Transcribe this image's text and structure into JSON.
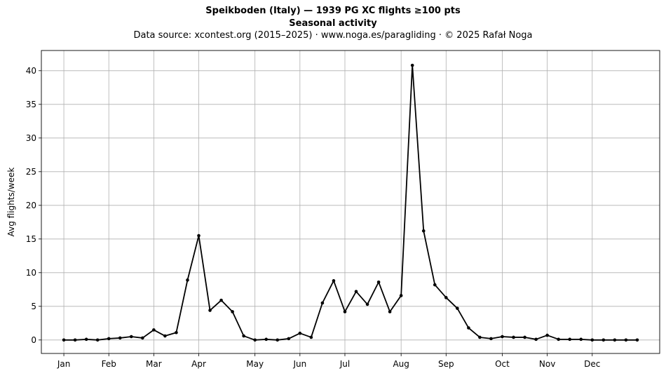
{
  "header": {
    "title_line1": "Speikboden (Italy)  —  1939 PG XC flights ≥100 pts",
    "title_line2": "Seasonal activity",
    "title_line3": "Data source: xcontest.org (2015–2025)  ·  www.noga.es/paragliding  ·  © 2025 Rafał Noga"
  },
  "chart_data": {
    "type": "line",
    "title": "Speikboden (Italy)  —  1939 PG XC flights ≥100 pts",
    "subtitle": "Seasonal activity",
    "ylabel": "Avg flights/week",
    "xlabel": "",
    "ylim": [
      -2,
      43
    ],
    "yticks": [
      0,
      5,
      10,
      15,
      20,
      25,
      30,
      35,
      40
    ],
    "xticks": [
      {
        "label": "Jan",
        "week": 0
      },
      {
        "label": "Feb",
        "week": 4
      },
      {
        "label": "Mar",
        "week": 8
      },
      {
        "label": "Apr",
        "week": 12
      },
      {
        "label": "May",
        "week": 17
      },
      {
        "label": "Jun",
        "week": 21
      },
      {
        "label": "Jul",
        "week": 25
      },
      {
        "label": "Aug",
        "week": 30
      },
      {
        "label": "Sep",
        "week": 34
      },
      {
        "label": "Oct",
        "week": 39
      },
      {
        "label": "Nov",
        "week": 43
      },
      {
        "label": "Dec",
        "week": 47
      }
    ],
    "grid": true,
    "line_color": "#000000",
    "series": [
      {
        "values": [
          0.0,
          0.0,
          0.1,
          0.0,
          0.2,
          0.3,
          0.5,
          0.3,
          1.5,
          0.6,
          1.1,
          8.9,
          15.5,
          4.4,
          5.9,
          4.2,
          0.6,
          0.0,
          0.1,
          0.0,
          0.2,
          1.0,
          0.4,
          5.5,
          8.8,
          4.2,
          7.2,
          5.3,
          8.6,
          4.2,
          6.6,
          40.8,
          16.2,
          8.2,
          6.3,
          4.7,
          1.8,
          0.4,
          0.2,
          0.5,
          0.4,
          0.4,
          0.1,
          0.7,
          0.1,
          0.1,
          0.1,
          0.0,
          0.0,
          0.0,
          0.0,
          0.0
        ]
      }
    ]
  }
}
